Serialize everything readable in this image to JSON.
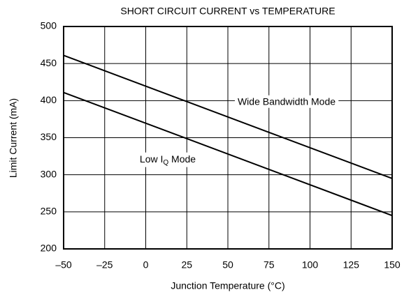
{
  "chart_data": {
    "type": "line",
    "title": "SHORT CIRCUIT CURRENT vs TEMPERATURE",
    "x_label": "Junction Temperature (°C)",
    "y_label": "Limit Current (mA)",
    "x": [
      -50,
      150
    ],
    "series": [
      {
        "name": "Wide Bandwidth Mode",
        "color": "#000000",
        "values": [
          461,
          295
        ]
      },
      {
        "name": [
          "Low I",
          "Q",
          " Mode"
        ],
        "color": "#000000",
        "values": [
          411,
          245
        ]
      }
    ],
    "xlim": [
      -50,
      150
    ],
    "xticks": [
      {
        "value": -50,
        "label": "–50"
      },
      {
        "value": -25,
        "label": "–25"
      },
      0,
      25,
      50,
      75,
      100,
      125,
      150
    ],
    "ylim": [
      200,
      500
    ],
    "yticks": [
      200,
      250,
      300,
      350,
      400,
      450,
      500
    ],
    "grid": true
  }
}
